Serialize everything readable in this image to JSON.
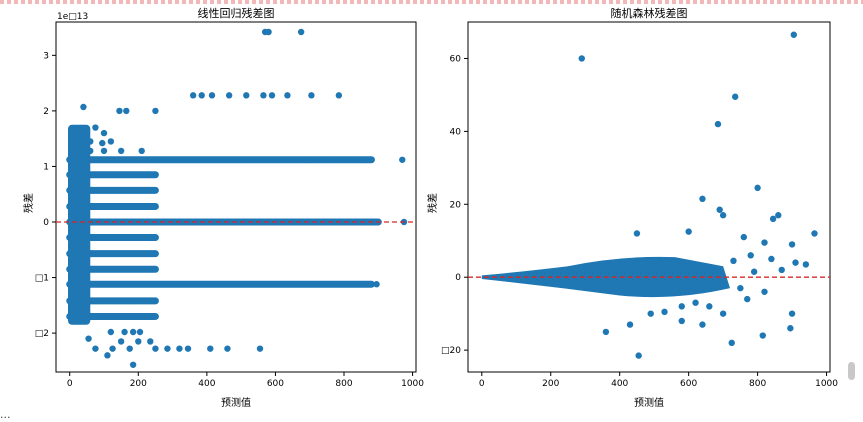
{
  "page": {
    "top_fragment": "‑‑ ‑ ‑‑ ‑‑ ‑‑‑‑ ‑‑",
    "bottom_fragment": "..."
  },
  "colors": {
    "point": "#1f77b4",
    "zero_line": "#d62728",
    "axes": "#000000",
    "background": "#ffffff"
  },
  "chart_data": [
    {
      "type": "scatter",
      "title": "线性回归残差图",
      "xlabel": "预测值",
      "ylabel": "残差",
      "offset_label": "1e□13",
      "xlim": [
        -40,
        1010
      ],
      "ylim": [
        -2.7,
        3.6
      ],
      "xticks": [
        0,
        200,
        400,
        600,
        800,
        1000
      ],
      "xtick_labels": [
        "0",
        "200",
        "400",
        "600",
        "800",
        "1000"
      ],
      "yticks": [
        -2,
        -1,
        0,
        1,
        2,
        3
      ],
      "ytick_labels": [
        "□2",
        "□1",
        "0",
        "1",
        "2",
        "3"
      ],
      "grid": false,
      "reference_line": {
        "y": 0,
        "style": "dashed"
      },
      "bands": [
        {
          "y": 1.12,
          "x": [
            0,
            880
          ]
        },
        {
          "y": 0.85,
          "x": [
            0,
            250
          ]
        },
        {
          "y": 0.57,
          "x": [
            0,
            250
          ]
        },
        {
          "y": 0.28,
          "x": [
            0,
            250
          ]
        },
        {
          "y": 0.0,
          "x": [
            0,
            900
          ]
        },
        {
          "y": -0.28,
          "x": [
            0,
            250
          ]
        },
        {
          "y": -0.57,
          "x": [
            0,
            250
          ]
        },
        {
          "y": -0.85,
          "x": [
            0,
            250
          ]
        },
        {
          "y": -1.12,
          "x": [
            0,
            880
          ]
        },
        {
          "y": -1.42,
          "x": [
            0,
            250
          ]
        },
        {
          "y": -1.7,
          "x": [
            0,
            250
          ]
        }
      ],
      "points": [
        [
          970,
          1.12
        ],
        [
          860,
          1.12
        ],
        [
          800,
          1.12
        ],
        [
          745,
          1.12
        ],
        [
          700,
          1.12
        ],
        [
          975,
          0.0
        ],
        [
          895,
          -1.12
        ],
        [
          852,
          -1.12
        ],
        [
          800,
          -1.12
        ],
        [
          570,
          3.42
        ],
        [
          580,
          3.42
        ],
        [
          675,
          3.42
        ],
        [
          360,
          2.28
        ],
        [
          385,
          2.28
        ],
        [
          415,
          2.28
        ],
        [
          465,
          2.28
        ],
        [
          515,
          2.28
        ],
        [
          565,
          2.28
        ],
        [
          590,
          2.28
        ],
        [
          635,
          2.28
        ],
        [
          705,
          2.28
        ],
        [
          785,
          2.28
        ],
        [
          40,
          2.07
        ],
        [
          145,
          2.0
        ],
        [
          165,
          2.0
        ],
        [
          250,
          2.0
        ],
        [
          75,
          1.7
        ],
        [
          100,
          1.6
        ],
        [
          30,
          1.55
        ],
        [
          60,
          1.45
        ],
        [
          95,
          1.42
        ],
        [
          120,
          1.45
        ],
        [
          60,
          1.28
        ],
        [
          100,
          1.28
        ],
        [
          150,
          1.28
        ],
        [
          210,
          1.28
        ],
        [
          95,
          -1.42
        ],
        [
          130,
          -1.42
        ],
        [
          170,
          -1.42
        ],
        [
          190,
          -1.42
        ],
        [
          120,
          -1.98
        ],
        [
          160,
          -1.98
        ],
        [
          185,
          -1.98
        ],
        [
          205,
          -1.98
        ],
        [
          150,
          -2.15
        ],
        [
          200,
          -2.15
        ],
        [
          235,
          -2.15
        ],
        [
          75,
          -2.28
        ],
        [
          125,
          -2.28
        ],
        [
          175,
          -2.28
        ],
        [
          250,
          -2.28
        ],
        [
          285,
          -2.28
        ],
        [
          320,
          -2.28
        ],
        [
          345,
          -2.28
        ],
        [
          410,
          -2.28
        ],
        [
          460,
          -2.28
        ],
        [
          555,
          -2.28
        ],
        [
          110,
          -2.4
        ],
        [
          55,
          -2.1
        ],
        [
          185,
          -2.57
        ]
      ]
    },
    {
      "type": "scatter",
      "title": "随机森林残差图",
      "xlabel": "预测值",
      "ylabel": "残差",
      "xlim": [
        -40,
        1010
      ],
      "ylim": [
        -26,
        70
      ],
      "xticks": [
        0,
        200,
        400,
        600,
        800,
        1000
      ],
      "xtick_labels": [
        "0",
        "200",
        "400",
        "600",
        "800",
        "1000"
      ],
      "yticks": [
        -20,
        0,
        20,
        40,
        60
      ],
      "ytick_labels": [
        "□20",
        "0",
        "20",
        "40",
        "60"
      ],
      "grid": false,
      "reference_line": {
        "y": 0,
        "style": "dashed"
      },
      "points": [
        [
          290,
          60
        ],
        [
          905,
          66.5
        ],
        [
          735,
          49.5
        ],
        [
          685,
          42
        ],
        [
          800,
          24.5
        ],
        [
          640,
          21.5
        ],
        [
          690,
          18.5
        ],
        [
          700,
          17
        ],
        [
          860,
          17
        ],
        [
          845,
          16
        ],
        [
          965,
          12
        ],
        [
          600,
          12.5
        ],
        [
          760,
          11
        ],
        [
          450,
          12
        ],
        [
          820,
          9.5
        ],
        [
          900,
          9
        ],
        [
          780,
          6
        ],
        [
          840,
          5
        ],
        [
          910,
          4
        ],
        [
          940,
          3.5
        ],
        [
          870,
          2
        ],
        [
          455,
          -21.5
        ],
        [
          725,
          -18
        ],
        [
          895,
          -14
        ],
        [
          815,
          -16
        ],
        [
          900,
          -10
        ],
        [
          700,
          -10
        ],
        [
          660,
          -8
        ],
        [
          620,
          -7
        ],
        [
          580,
          -8
        ],
        [
          530,
          -9.5
        ],
        [
          430,
          -13
        ],
        [
          360,
          -15
        ],
        [
          490,
          -10
        ],
        [
          770,
          -6
        ],
        [
          820,
          -4
        ],
        [
          640,
          -13
        ],
        [
          580,
          -12
        ],
        [
          750,
          -3
        ],
        [
          790,
          1.5
        ],
        [
          730,
          4.5
        ]
      ]
    }
  ]
}
